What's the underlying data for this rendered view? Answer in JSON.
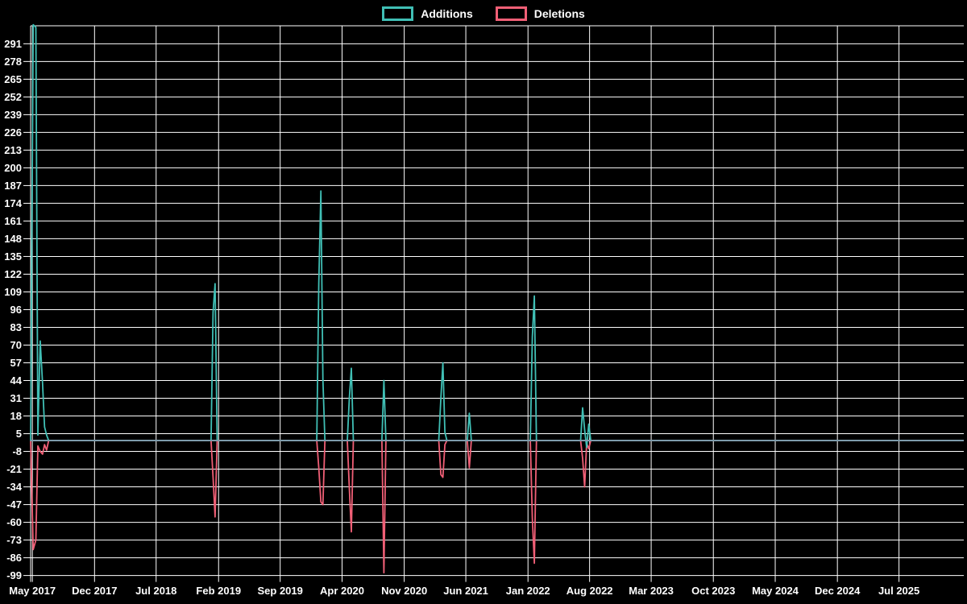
{
  "legend": {
    "items": [
      {
        "label": "Additions",
        "color": "#40bfb5"
      },
      {
        "label": "Deletions",
        "color": "#f05f76"
      }
    ]
  },
  "colors": {
    "background": "#000000",
    "grid_line": "#ffffff",
    "axis_text": "#ffffff",
    "additions_line": "#40bfb5",
    "deletions_line": "#f05f76",
    "baseline_overlap_line": "#7d9bab"
  },
  "chart_data": {
    "type": "line",
    "title": "",
    "xlabel": "",
    "ylabel": "",
    "grid": true,
    "legend_position": "top-center",
    "x_axis": {
      "domain": [
        "2017-04-25",
        "2026-02-09"
      ],
      "tick_dates": [
        "2017-05-01",
        "2017-12-01",
        "2018-07-01",
        "2019-02-01",
        "2019-09-01",
        "2020-04-01",
        "2020-11-01",
        "2021-06-01",
        "2022-01-01",
        "2022-08-01",
        "2023-03-01",
        "2023-10-01",
        "2024-05-01",
        "2024-12-01",
        "2025-07-01"
      ],
      "tick_labels": [
        "May 2017",
        "Dec 2017",
        "Jul 2018",
        "Feb 2019",
        "Sep 2019",
        "Apr 2020",
        "Nov 2020",
        "Jun 2021",
        "Jan 2022",
        "Aug 2022",
        "Mar 2023",
        "Oct 2023",
        "May 2024",
        "Dec 2024",
        "Jul 2025"
      ]
    },
    "y_axis": {
      "min": -99,
      "max": 304,
      "ticks": [
        291,
        278,
        265,
        252,
        239,
        226,
        213,
        200,
        187,
        174,
        161,
        148,
        135,
        122,
        109,
        96,
        83,
        70,
        57,
        44,
        31,
        18,
        5,
        -8,
        -21,
        -34,
        -47,
        -60,
        -73,
        -86,
        -99
      ]
    },
    "x": [
      "2017-04-25",
      "2017-05-04",
      "2017-05-13",
      "2017-05-20",
      "2017-05-28",
      "2017-06-05",
      "2017-06-12",
      "2017-06-19",
      "2017-06-26",
      "2019-01-06",
      "2019-01-13",
      "2019-01-20",
      "2019-01-27",
      "2020-01-05",
      "2020-01-12",
      "2020-01-19",
      "2020-01-26",
      "2020-02-02",
      "2020-04-19",
      "2020-04-26",
      "2020-05-03",
      "2020-05-10",
      "2020-08-16",
      "2020-08-23",
      "2020-08-30",
      "2021-02-28",
      "2021-03-07",
      "2021-03-14",
      "2021-03-21",
      "2021-03-28",
      "2021-06-06",
      "2021-06-13",
      "2021-06-20",
      "2022-01-09",
      "2022-01-16",
      "2022-01-23",
      "2022-01-30",
      "2022-07-01",
      "2022-07-08",
      "2022-07-15",
      "2022-07-22",
      "2022-07-29",
      "2022-08-05",
      "2026-02-06"
    ],
    "series": [
      {
        "name": "Additions",
        "color": "#40bfb5",
        "values": [
          0,
          305,
          303,
          4,
          73,
          42,
          10,
          4,
          0,
          0,
          94,
          115,
          0,
          0,
          115,
          183,
          45,
          0,
          0,
          31,
          53,
          0,
          0,
          44,
          0,
          0,
          31,
          57,
          6,
          0,
          0,
          20,
          0,
          0,
          76,
          106,
          0,
          0,
          24,
          8,
          -5,
          12,
          0,
          0
        ]
      },
      {
        "name": "Deletions",
        "color": "#f05f76",
        "values": [
          0,
          -80,
          -73,
          -4,
          -8,
          -10,
          -3,
          -7,
          0,
          0,
          -27,
          -56,
          0,
          0,
          -20,
          -45,
          -47,
          0,
          0,
          -35,
          -67,
          0,
          0,
          -97,
          0,
          0,
          -25,
          -27,
          -3,
          0,
          0,
          -20,
          0,
          0,
          -57,
          -90,
          0,
          0,
          -13,
          -34,
          -2,
          -6,
          0,
          0
        ]
      }
    ]
  }
}
